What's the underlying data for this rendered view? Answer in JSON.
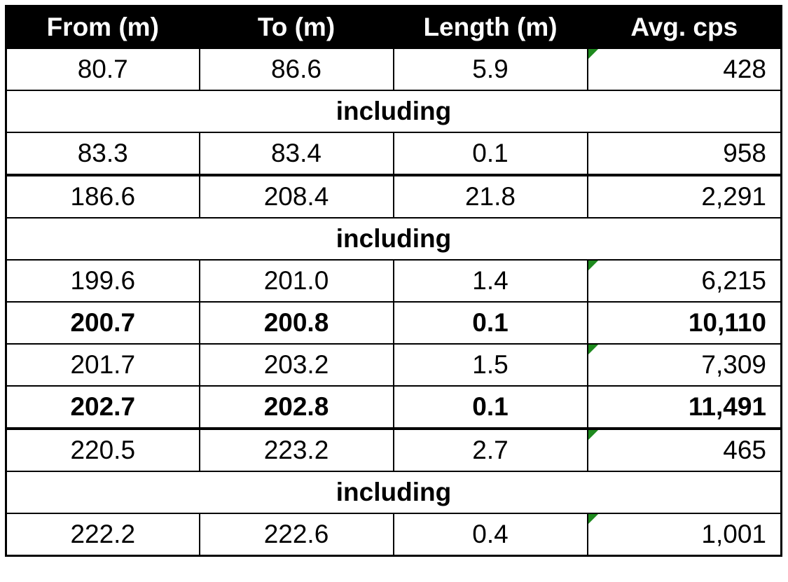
{
  "table": {
    "header": [
      "From (m)",
      "To (m)",
      "Length (m)",
      "Avg. cps"
    ],
    "rows": [
      [
        "80.7",
        "86.6",
        "5.9",
        "428"
      ],
      [
        "including"
      ],
      [
        "83.3",
        "83.4",
        "0.1",
        "958"
      ],
      [
        "186.6",
        "208.4",
        "21.8",
        "2,291"
      ],
      [
        "including"
      ],
      [
        "199.6",
        "201.0",
        "1.4",
        "6,215"
      ],
      [
        "200.7",
        "200.8",
        "0.1",
        "10,110"
      ],
      [
        "201.7",
        "203.2",
        "1.5",
        "7,309"
      ],
      [
        "202.7",
        "202.8",
        "0.1",
        "11,491"
      ],
      [
        "220.5",
        "223.2",
        "2.7",
        "465"
      ],
      [
        "including"
      ],
      [
        "222.2",
        "222.6",
        "0.4",
        "1,001"
      ]
    ]
  }
}
